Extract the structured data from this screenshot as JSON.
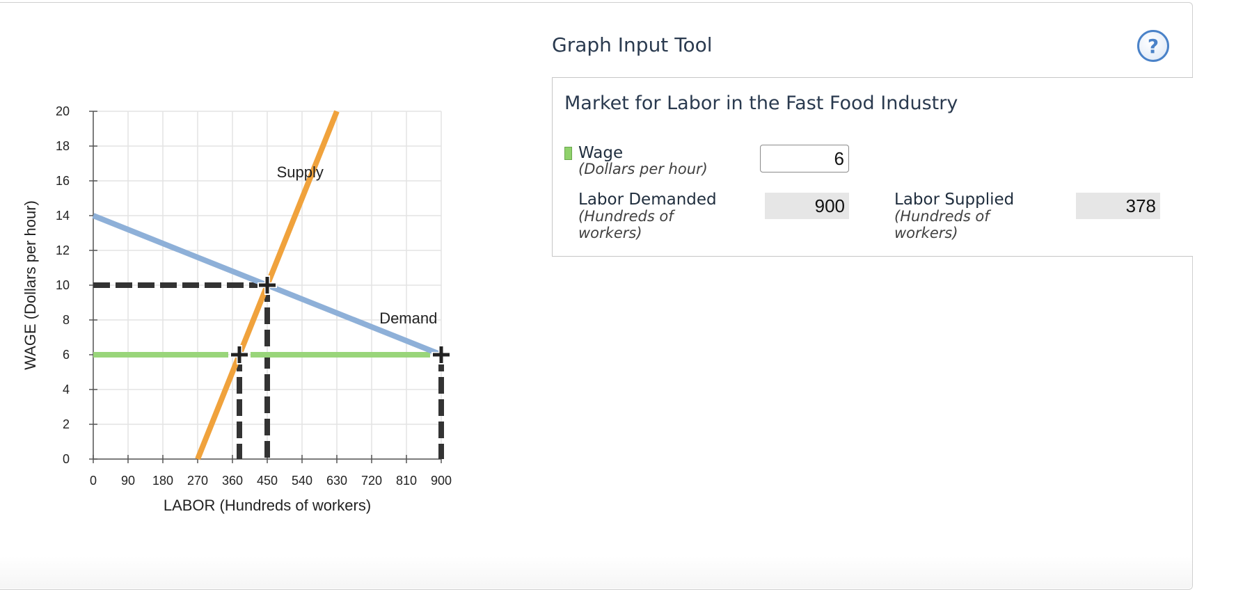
{
  "tool": {
    "title": "Graph Input Tool",
    "help_label": "?"
  },
  "panel": {
    "title": "Market for Labor in the Fast Food Industry",
    "wage_label": "Wage",
    "wage_units": "(Dollars per hour)",
    "wage_value": "6",
    "demanded_label": "Labor Demanded",
    "demanded_units": "(Hundreds of workers)",
    "demanded_value": "900",
    "supplied_label": "Labor Supplied",
    "supplied_units": "(Hundreds of workers)",
    "supplied_value": "378"
  },
  "colors": {
    "supply": "#f0a23c",
    "demand": "#8eb0d8",
    "wage_line": "#99d57a",
    "dashed": "#333333",
    "grid": "#e3e3e3"
  },
  "chart_data": {
    "type": "line",
    "xlabel": "LABOR (Hundreds of workers)",
    "ylabel": "WAGE (Dollars per hour)",
    "xlim": [
      0,
      900
    ],
    "ylim": [
      0,
      20
    ],
    "x_ticks": [
      "0",
      "90",
      "180",
      "270",
      "360",
      "450",
      "540",
      "630",
      "720",
      "810",
      "900"
    ],
    "y_ticks": [
      "0",
      "2",
      "4",
      "6",
      "8",
      "10",
      "12",
      "14",
      "16",
      "18",
      "20"
    ],
    "grid": true,
    "series": [
      {
        "name": "Supply",
        "color": "#f0a23c",
        "points": [
          [
            270,
            0
          ],
          [
            630,
            20
          ]
        ]
      },
      {
        "name": "Demand",
        "color": "#8eb0d8",
        "points": [
          [
            0,
            14
          ],
          [
            900,
            6
          ]
        ]
      }
    ],
    "wage_line": {
      "y": 6,
      "x_range": [
        0,
        900
      ],
      "color": "#99d57a"
    },
    "markers": [
      {
        "x": 450,
        "y": 10
      },
      {
        "x": 378,
        "y": 6
      },
      {
        "x": 900,
        "y": 6
      }
    ],
    "dashed_guides": [
      {
        "from": [
          0,
          10
        ],
        "to": [
          450,
          10
        ]
      },
      {
        "from": [
          450,
          10
        ],
        "to": [
          450,
          0
        ]
      },
      {
        "from": [
          378,
          6
        ],
        "to": [
          378,
          0
        ]
      },
      {
        "from": [
          900,
          6
        ],
        "to": [
          900,
          0
        ]
      }
    ],
    "labels": [
      {
        "text": "Supply",
        "x": 535,
        "y": 16.2
      },
      {
        "text": "Demand",
        "x": 815,
        "y": 7.8
      }
    ]
  }
}
